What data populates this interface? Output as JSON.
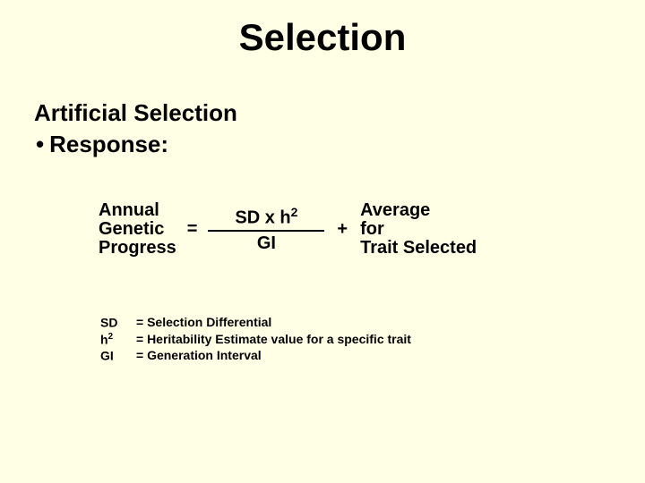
{
  "background_color": "#ffffe5",
  "text_color": "#000000",
  "title": "Selection",
  "title_fontsize": 42,
  "subtitle": "Artificial Selection",
  "bullet": {
    "symbol": "•",
    "text": "Response:"
  },
  "body_fontsize": 26,
  "formula": {
    "lhs": {
      "line1": "Annual",
      "line2": "Genetic",
      "line3": "Progress"
    },
    "equals": "=",
    "fraction": {
      "top_prefix": "SD x h",
      "top_super": "2",
      "bottom": "GI"
    },
    "plus": "+",
    "rhs": {
      "line1": "Average",
      "line2": "for",
      "line3": "Trait Selected"
    },
    "fontsize": 20
  },
  "legend": {
    "fontsize": 14,
    "rows": [
      {
        "key_prefix": "SD",
        "key_super": "",
        "def": "= Selection Differential"
      },
      {
        "key_prefix": "h",
        "key_super": "2",
        "def": "= Heritability Estimate value for a specific trait"
      },
      {
        "key_prefix": "GI",
        "key_super": "",
        "def": "= Generation Interval"
      }
    ]
  }
}
